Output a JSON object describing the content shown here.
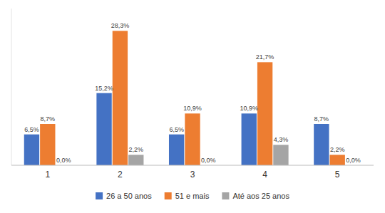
{
  "chart_data": {
    "type": "bar",
    "categories": [
      "1",
      "2",
      "3",
      "4",
      "5"
    ],
    "series": [
      {
        "name": "26 a 50 anos",
        "color": "#4472C4",
        "values": [
          6.5,
          15.2,
          6.5,
          10.9,
          8.7
        ],
        "value_labels": [
          "6,5%",
          "15,2%",
          "6,5%",
          "10,9%",
          "8,7%"
        ]
      },
      {
        "name": "51 e mais",
        "color": "#ED7D31",
        "values": [
          8.7,
          28.3,
          10.9,
          21.7,
          2.2
        ],
        "value_labels": [
          "8,7%",
          "28,3%",
          "10,9%",
          "21,7%",
          "2,2%"
        ]
      },
      {
        "name": "Até aos 25 anos",
        "color": "#A5A5A5",
        "values": [
          0.0,
          2.2,
          0.0,
          4.3,
          0.0
        ],
        "value_labels": [
          "0,0%",
          "2,2%",
          "0,0%",
          "4,3%",
          "0,0%"
        ]
      }
    ],
    "ylim": [
      0,
      33
    ],
    "data_labels": true,
    "legend": "bottom",
    "tick_labels": "x",
    "grid": false
  }
}
